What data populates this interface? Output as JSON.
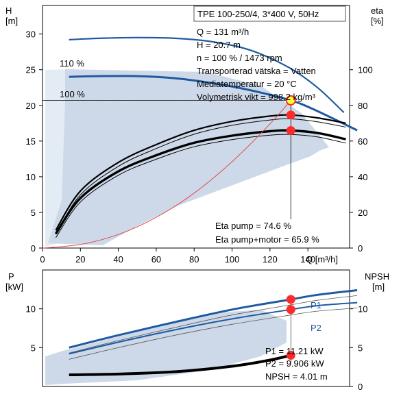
{
  "colors": {
    "curve_blue": "#1f5aa0",
    "area_fill": "#cdd9e8",
    "area_fill_light": "#e3ecf5",
    "marker_red": "#ff2a2a",
    "marker_yellow": "#ffff33",
    "efficiency_red": "#e24a4a",
    "black": "#000000"
  },
  "chart_data": [
    {
      "type": "line",
      "name": "head_efficiency",
      "title": "TPE 100-250/4, 3*400 V, 50Hz",
      "info_lines": [
        "Q = 131 m³/h",
        "H = 20.7 m",
        "n = 100 % / 1473 rpm",
        "Transporterad vätska = Vatten",
        "Mediatemperatur = 20 °C",
        "Volymetrisk vikt = 998.2 kg/m³"
      ],
      "efficiency_labels": [
        "Eta pump = 74.6 %",
        "Eta pump+motor = 65.9 %"
      ],
      "ylabel_left": [
        "H",
        "[m]"
      ],
      "ylabel_right": [
        "eta",
        "[%]"
      ],
      "xlabel": "Q [m³/h]",
      "x_ticks": [
        0,
        20,
        40,
        60,
        80,
        100,
        120,
        140
      ],
      "y_ticks_left": [
        0,
        5,
        10,
        15,
        20,
        25,
        30
      ],
      "y_ticks_right": [
        0,
        20,
        40,
        60,
        80,
        100
      ],
      "xlim": [
        0,
        162
      ],
      "ylim_left": [
        0,
        34
      ],
      "ylim_right": [
        0,
        136
      ],
      "curve_labels": [
        "110 %",
        "100 %"
      ],
      "series": [
        {
          "name": "110 %",
          "axis": "left",
          "x": [
            14,
            30,
            50,
            70,
            90,
            110,
            130,
            145,
            159
          ],
          "y": [
            29.2,
            29.4,
            29.5,
            29.4,
            28.9,
            27.7,
            25.3,
            22.5,
            19.0
          ]
        },
        {
          "name": "100 %",
          "axis": "left",
          "x": [
            14,
            30,
            50,
            70,
            90,
            110,
            131,
            145,
            166
          ],
          "y": [
            24.0,
            24.1,
            24.1,
            23.8,
            23.1,
            22.1,
            20.7,
            19.2,
            16.5
          ]
        },
        {
          "name": "eta_pump",
          "axis": "right",
          "x": [
            7,
            20,
            40,
            60,
            80,
            100,
            120,
            131,
            145,
            160
          ],
          "y": [
            10,
            32,
            48,
            58,
            66,
            71,
            74,
            74.6,
            73,
            70
          ]
        },
        {
          "name": "eta_pump_motor",
          "axis": "right",
          "x": [
            7,
            20,
            40,
            60,
            80,
            100,
            120,
            131,
            145,
            160
          ],
          "y": [
            8,
            28,
            43,
            52,
            59,
            63,
            65.5,
            65.9,
            64.5,
            61
          ]
        },
        {
          "name": "system_curve",
          "axis": "left",
          "x": [
            0,
            20,
            40,
            60,
            80,
            100,
            120,
            131
          ],
          "y": [
            0,
            0.5,
            1.9,
            4.3,
            7.7,
            12.1,
            17.4,
            20.7
          ]
        }
      ],
      "duty_point": {
        "x": 131,
        "y": 20.7
      }
    },
    {
      "type": "line",
      "name": "power_npsh",
      "ylabel_left": [
        "P",
        "[kW]"
      ],
      "ylabel_right": [
        "NPSH",
        "[m]"
      ],
      "y_ticks_left": [
        5,
        10
      ],
      "y_ticks_right": [
        0,
        5,
        10
      ],
      "ylim_left": [
        0,
        15
      ],
      "ylim_right": [
        0,
        15
      ],
      "xlim": [
        0,
        162
      ],
      "labels": [
        "P1 = 11.21 kW",
        "P2 = 9.906 kW",
        "NPSH = 4.01 m"
      ],
      "curve_labels": [
        "P1",
        "P2"
      ],
      "series": [
        {
          "name": "P1",
          "axis": "left",
          "x": [
            14,
            40,
            70,
            100,
            131,
            145,
            166
          ],
          "y": [
            5.0,
            6.6,
            8.3,
            9.9,
            11.21,
            11.8,
            12.4
          ]
        },
        {
          "name": "P2",
          "axis": "left",
          "x": [
            14,
            40,
            70,
            100,
            131,
            145,
            166
          ],
          "y": [
            4.2,
            5.7,
            7.3,
            8.7,
            9.906,
            10.4,
            10.8
          ]
        },
        {
          "name": "NPSH",
          "axis": "right",
          "x": [
            14,
            40,
            70,
            100,
            120,
            131
          ],
          "y": [
            1.5,
            1.6,
            1.9,
            2.6,
            3.4,
            4.01
          ]
        }
      ],
      "duty_point_x": 131
    }
  ]
}
